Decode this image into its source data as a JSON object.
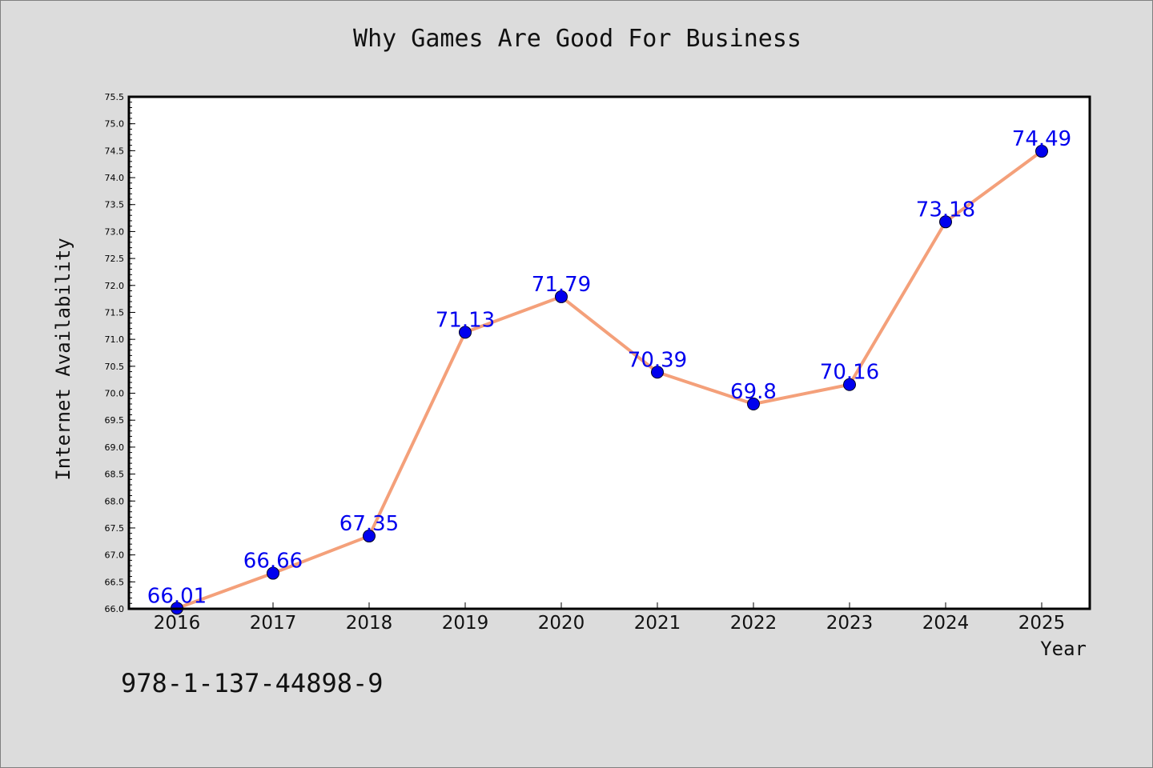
{
  "chart_data": {
    "type": "line",
    "title": "Why Games Are Good For Business",
    "xlabel": "Year",
    "ylabel": "Internet Availability",
    "categories": [
      "2016",
      "2017",
      "2018",
      "2019",
      "2020",
      "2021",
      "2022",
      "2023",
      "2024",
      "2025"
    ],
    "values": [
      66.01,
      66.66,
      67.35,
      71.13,
      71.79,
      70.39,
      69.8,
      70.16,
      73.18,
      74.49
    ],
    "data_labels": [
      "66.01",
      "66.66",
      "67.35",
      "71.13",
      "71.79",
      "70.39",
      "69.8",
      "70.16",
      "73.18",
      "74.49"
    ],
    "ylim": [
      66.0,
      75.5
    ],
    "y_ticks": [
      "66.0",
      "66.5",
      "67.0",
      "67.5",
      "68.0",
      "68.5",
      "69.0",
      "69.5",
      "70.0",
      "70.5",
      "71.0",
      "71.5",
      "72.0",
      "72.5",
      "73.0",
      "73.5",
      "74.0",
      "74.5",
      "75.0",
      "75.5"
    ],
    "grid": false,
    "line_color": "#f4a07a",
    "marker_color": "#0000ee",
    "label_color": "#0000ee"
  },
  "footer": {
    "isbn": "978-1-137-44898-9"
  }
}
